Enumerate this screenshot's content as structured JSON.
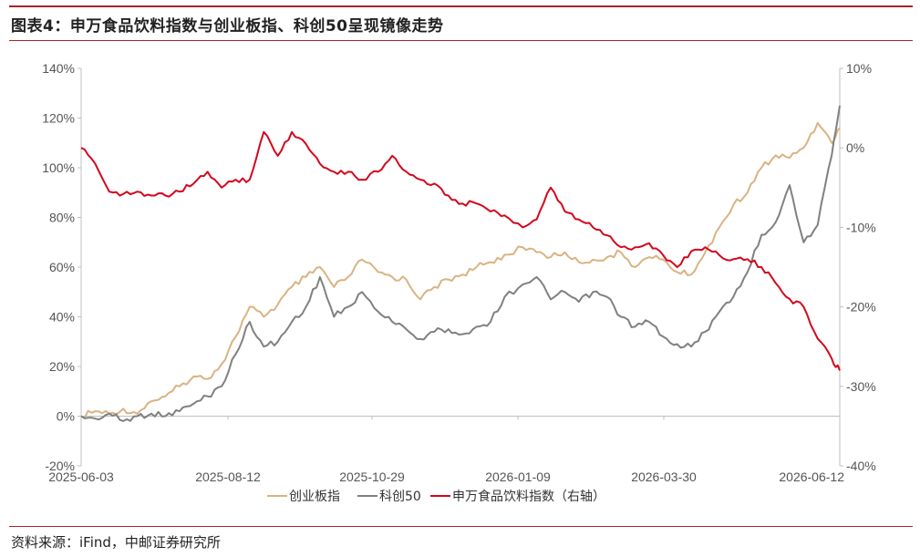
{
  "header": {
    "title": "图表4：申万食品饮料指数与创业板指、科创50呈现镜像走势"
  },
  "footer": {
    "source": "资料来源：iFind，中邮证券研究所"
  },
  "colors": {
    "rule": "#a8242c",
    "axis": "#bfbfbf"
  },
  "chart_data": {
    "type": "line",
    "xlabel": "",
    "ylabel": "",
    "x_ticks": [
      "2025-06-03",
      "2025-08-12",
      "2025-10-29",
      "2026-01-09",
      "2026-03-30",
      "2026-06-12"
    ],
    "x_range": [
      "2025-06-03",
      "2026-06-16"
    ],
    "y_left": {
      "ticks": [
        "140%",
        "120%",
        "100%",
        "80%",
        "60%",
        "40%",
        "20%",
        "0%",
        "-20%"
      ],
      "range": [
        -20,
        140
      ]
    },
    "y_right": {
      "ticks": [
        "10%",
        "0%",
        "-10%",
        "-20%",
        "-30%",
        "-40%"
      ],
      "range": [
        -40,
        10
      ]
    },
    "legend_position": "bottom",
    "grid": false,
    "series": [
      {
        "name": "创业板指",
        "axis": "left",
        "color": "#d9b382",
        "points": [
          [
            "2025-06-03",
            0
          ],
          [
            "2025-06-10",
            2
          ],
          [
            "2025-06-17",
            1
          ],
          [
            "2025-06-24",
            3
          ],
          [
            "2025-07-01",
            1
          ],
          [
            "2025-07-08",
            6
          ],
          [
            "2025-07-15",
            8
          ],
          [
            "2025-07-22",
            12
          ],
          [
            "2025-07-29",
            16
          ],
          [
            "2025-08-05",
            15
          ],
          [
            "2025-08-12",
            21
          ],
          [
            "2025-08-19",
            32
          ],
          [
            "2025-08-26",
            44
          ],
          [
            "2025-09-02",
            40
          ],
          [
            "2025-09-09",
            45
          ],
          [
            "2025-09-16",
            52
          ],
          [
            "2025-09-23",
            56
          ],
          [
            "2025-09-30",
            60
          ],
          [
            "2025-10-07",
            52
          ],
          [
            "2025-10-14",
            56
          ],
          [
            "2025-10-21",
            63
          ],
          [
            "2025-10-29",
            58
          ],
          [
            "2025-11-05",
            56
          ],
          [
            "2025-11-12",
            55
          ],
          [
            "2025-11-19",
            47
          ],
          [
            "2025-11-26",
            52
          ],
          [
            "2025-12-03",
            55
          ],
          [
            "2025-12-10",
            57
          ],
          [
            "2025-12-17",
            60
          ],
          [
            "2025-12-24",
            62
          ],
          [
            "2025-12-31",
            65
          ],
          [
            "2026-01-09",
            68
          ],
          [
            "2026-01-16",
            66
          ],
          [
            "2026-01-23",
            64
          ],
          [
            "2026-01-30",
            66
          ],
          [
            "2026-02-06",
            62
          ],
          [
            "2026-02-13",
            63
          ],
          [
            "2026-02-20",
            64
          ],
          [
            "2026-02-27",
            66
          ],
          [
            "2026-03-06",
            60
          ],
          [
            "2026-03-13",
            64
          ],
          [
            "2026-03-20",
            63
          ],
          [
            "2026-03-27",
            58
          ],
          [
            "2026-04-03",
            57
          ],
          [
            "2026-04-10",
            66
          ],
          [
            "2026-04-17",
            76
          ],
          [
            "2026-04-24",
            85
          ],
          [
            "2026-05-01",
            90
          ],
          [
            "2026-05-08",
            100
          ],
          [
            "2026-05-15",
            105
          ],
          [
            "2026-05-22",
            104
          ],
          [
            "2026-05-29",
            108
          ],
          [
            "2026-06-05",
            118
          ],
          [
            "2026-06-12",
            110
          ],
          [
            "2026-06-16",
            116
          ]
        ]
      },
      {
        "name": "科创50",
        "axis": "left",
        "color": "#808080",
        "points": [
          [
            "2025-06-03",
            0
          ],
          [
            "2025-06-10",
            -1
          ],
          [
            "2025-06-17",
            1
          ],
          [
            "2025-06-24",
            -2
          ],
          [
            "2025-07-01",
            0
          ],
          [
            "2025-07-08",
            1
          ],
          [
            "2025-07-15",
            0
          ],
          [
            "2025-07-22",
            2
          ],
          [
            "2025-07-29",
            5
          ],
          [
            "2025-08-05",
            8
          ],
          [
            "2025-08-12",
            12
          ],
          [
            "2025-08-19",
            25
          ],
          [
            "2025-08-26",
            38
          ],
          [
            "2025-09-02",
            28
          ],
          [
            "2025-09-09",
            30
          ],
          [
            "2025-09-16",
            38
          ],
          [
            "2025-09-23",
            44
          ],
          [
            "2025-09-30",
            56
          ],
          [
            "2025-10-07",
            40
          ],
          [
            "2025-10-14",
            44
          ],
          [
            "2025-10-21",
            50
          ],
          [
            "2025-10-29",
            42
          ],
          [
            "2025-11-05",
            38
          ],
          [
            "2025-11-12",
            35
          ],
          [
            "2025-11-19",
            31
          ],
          [
            "2025-11-26",
            34
          ],
          [
            "2025-12-03",
            35
          ],
          [
            "2025-12-10",
            33
          ],
          [
            "2025-12-17",
            36
          ],
          [
            "2025-12-24",
            38
          ],
          [
            "2025-12-31",
            48
          ],
          [
            "2026-01-09",
            53
          ],
          [
            "2026-01-16",
            56
          ],
          [
            "2026-01-23",
            47
          ],
          [
            "2026-01-30",
            50
          ],
          [
            "2026-02-06",
            46
          ],
          [
            "2026-02-13",
            50
          ],
          [
            "2026-02-20",
            48
          ],
          [
            "2026-02-27",
            40
          ],
          [
            "2026-03-06",
            36
          ],
          [
            "2026-03-13",
            38
          ],
          [
            "2026-03-20",
            32
          ],
          [
            "2026-03-27",
            29
          ],
          [
            "2026-04-03",
            28
          ],
          [
            "2026-04-10",
            34
          ],
          [
            "2026-04-17",
            42
          ],
          [
            "2026-04-24",
            48
          ],
          [
            "2026-05-01",
            58
          ],
          [
            "2026-05-08",
            73
          ],
          [
            "2026-05-15",
            78
          ],
          [
            "2026-05-22",
            93
          ],
          [
            "2026-05-29",
            70
          ],
          [
            "2026-06-05",
            77
          ],
          [
            "2026-06-12",
            105
          ],
          [
            "2026-06-16",
            125
          ]
        ]
      },
      {
        "name": "申万食品饮料指数（右轴）",
        "axis": "right",
        "color": "#d3071d",
        "points": [
          [
            "2025-06-03",
            0
          ],
          [
            "2025-06-10",
            -2
          ],
          [
            "2025-06-17",
            -5.5
          ],
          [
            "2025-06-24",
            -5.8
          ],
          [
            "2025-07-01",
            -5.5
          ],
          [
            "2025-07-08",
            -6
          ],
          [
            "2025-07-15",
            -6
          ],
          [
            "2025-07-22",
            -5.5
          ],
          [
            "2025-07-29",
            -4.5
          ],
          [
            "2025-08-05",
            -3
          ],
          [
            "2025-08-12",
            -5
          ],
          [
            "2025-08-19",
            -4
          ],
          [
            "2025-08-26",
            -4
          ],
          [
            "2025-09-02",
            2
          ],
          [
            "2025-09-09",
            -1
          ],
          [
            "2025-09-16",
            2
          ],
          [
            "2025-09-23",
            0.5
          ],
          [
            "2025-09-30",
            -2
          ],
          [
            "2025-10-07",
            -3
          ],
          [
            "2025-10-14",
            -3
          ],
          [
            "2025-10-21",
            -4
          ],
          [
            "2025-10-29",
            -3
          ],
          [
            "2025-11-05",
            -1
          ],
          [
            "2025-11-12",
            -3
          ],
          [
            "2025-11-19",
            -4
          ],
          [
            "2025-11-26",
            -4.5
          ],
          [
            "2025-12-03",
            -6
          ],
          [
            "2025-12-10",
            -7
          ],
          [
            "2025-12-17",
            -7
          ],
          [
            "2025-12-24",
            -8
          ],
          [
            "2025-12-31",
            -8.5
          ],
          [
            "2026-01-09",
            -10
          ],
          [
            "2026-01-16",
            -9
          ],
          [
            "2026-01-23",
            -5
          ],
          [
            "2026-01-30",
            -8
          ],
          [
            "2026-02-06",
            -9
          ],
          [
            "2026-02-13",
            -10
          ],
          [
            "2026-02-20",
            -11
          ],
          [
            "2026-02-27",
            -12.5
          ],
          [
            "2026-03-06",
            -12.5
          ],
          [
            "2026-03-13",
            -12
          ],
          [
            "2026-03-20",
            -13.5
          ],
          [
            "2026-03-27",
            -15
          ],
          [
            "2026-04-03",
            -13
          ],
          [
            "2026-04-10",
            -12.5
          ],
          [
            "2026-04-17",
            -13.5
          ],
          [
            "2026-04-24",
            -14
          ],
          [
            "2026-05-01",
            -14
          ],
          [
            "2026-05-08",
            -15
          ],
          [
            "2026-05-15",
            -17
          ],
          [
            "2026-05-22",
            -19
          ],
          [
            "2026-05-29",
            -20
          ],
          [
            "2026-06-05",
            -24
          ],
          [
            "2026-06-12",
            -26.5
          ],
          [
            "2026-06-16",
            -28
          ]
        ]
      }
    ]
  }
}
